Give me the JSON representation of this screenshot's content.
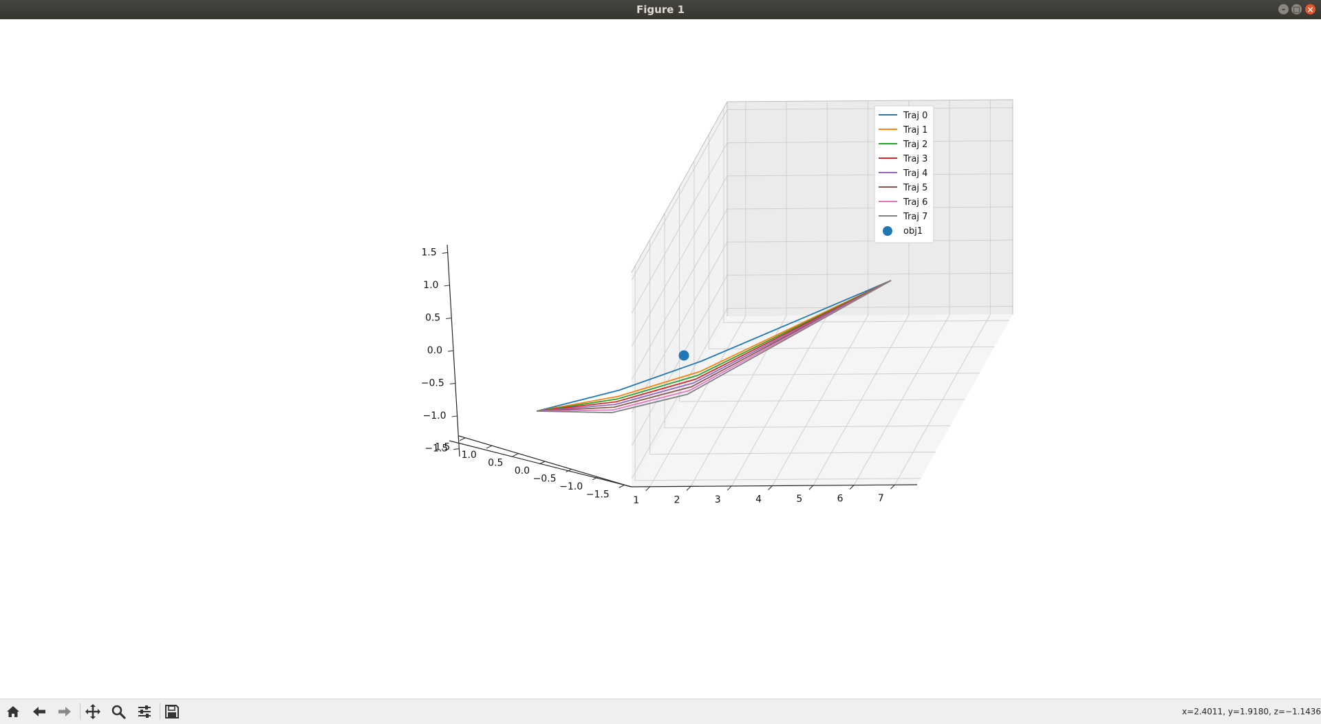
{
  "window": {
    "title": "Figure 1",
    "minimize_glyph": "–",
    "maximize_glyph": "□",
    "close_glyph": "×"
  },
  "toolbar": {
    "buttons": [
      {
        "name": "home-button",
        "icon": "home-icon"
      },
      {
        "name": "back-button",
        "icon": "arrow-left-icon"
      },
      {
        "name": "forward-button",
        "icon": "arrow-right-icon"
      },
      {
        "name": "pan-button",
        "icon": "move-icon"
      },
      {
        "name": "zoom-button",
        "icon": "magnifier-icon"
      },
      {
        "name": "configure-subplots-button",
        "icon": "sliders-icon"
      },
      {
        "name": "save-button",
        "icon": "floppy-icon"
      }
    ],
    "coords": "x=2.4011, y=1.9180, z=−1.1436"
  },
  "chart_data": {
    "type": "line",
    "projection": "3d",
    "title": "",
    "xlabel": "",
    "ylabel": "",
    "zlabel": "",
    "xlim": [
      0.55,
      7.55
    ],
    "ylim": [
      -1.62,
      1.62
    ],
    "zlim": [
      -1.62,
      1.62
    ],
    "xticks": [
      "1",
      "2",
      "3",
      "4",
      "5",
      "6",
      "7"
    ],
    "yticks": [
      "−1.5",
      "−1.0",
      "−0.5",
      "0.0",
      "0.5",
      "1.0",
      "1.5"
    ],
    "zticks": [
      "−1.5",
      "−1.0",
      "−0.5",
      "0.0",
      "0.5",
      "1.0",
      "1.5"
    ],
    "grid": true,
    "legend_position": "top-right",
    "series": [
      {
        "name": "Traj 0",
        "color": "#1f77b4",
        "points": [
          [
            1.0,
            0.0,
            0.0
          ],
          [
            3.0,
            0.5,
            0.0
          ],
          [
            7.0,
            1.8,
            0.0
          ]
        ]
      },
      {
        "name": "Traj 1",
        "color": "#ff7f0e",
        "points": [
          [
            1.0,
            0.0,
            0.0
          ],
          [
            3.0,
            0.25,
            0.0
          ],
          [
            7.0,
            1.8,
            0.0
          ]
        ]
      },
      {
        "name": "Traj 2",
        "color": "#2ca02c",
        "points": [
          [
            1.0,
            0.0,
            0.0
          ],
          [
            3.0,
            0.1,
            0.0
          ],
          [
            7.0,
            1.8,
            0.0
          ]
        ]
      },
      {
        "name": "Traj 3",
        "color": "#d62728",
        "points": [
          [
            1.0,
            0.0,
            0.0
          ],
          [
            3.0,
            -0.02,
            0.0
          ],
          [
            7.0,
            1.8,
            0.0
          ]
        ]
      },
      {
        "name": "Traj 4",
        "color": "#9467bd",
        "points": [
          [
            1.0,
            0.0,
            0.0
          ],
          [
            3.0,
            -0.05,
            0.0
          ],
          [
            7.0,
            1.8,
            0.0
          ]
        ]
      },
      {
        "name": "Traj 5",
        "color": "#8c564b",
        "points": [
          [
            1.0,
            0.0,
            0.0
          ],
          [
            3.0,
            -0.08,
            0.0
          ],
          [
            7.0,
            1.8,
            0.0
          ]
        ]
      },
      {
        "name": "Traj 6",
        "color": "#e377c2",
        "points": [
          [
            1.0,
            0.0,
            0.0
          ],
          [
            3.0,
            -0.09,
            0.0
          ],
          [
            7.0,
            1.8,
            0.0
          ]
        ]
      },
      {
        "name": "Traj 7",
        "color": "#7f7f7f",
        "points": [
          [
            1.0,
            0.0,
            0.0
          ],
          [
            3.0,
            -0.1,
            0.0
          ],
          [
            7.0,
            1.8,
            0.0
          ]
        ]
      }
    ],
    "scatter": [
      {
        "name": "obj1",
        "color": "#1f77b4",
        "points": [
          [
            2.0,
            1.0,
            0.0
          ]
        ]
      }
    ]
  }
}
